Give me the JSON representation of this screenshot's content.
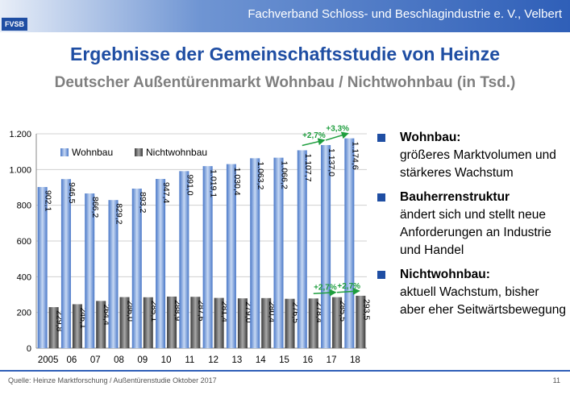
{
  "header": {
    "logo_text": "FVSB",
    "organization": "Fachverband Schloss- und Beschlagindustrie e. V., Velbert"
  },
  "title": "Ergebnisse der Gemeinschaftsstudie von Heinze",
  "subtitle": "Deutscher Außentürenmarkt Wohnbau / Nichtwohnbau (in Tsd.)",
  "chart_data": {
    "type": "bar",
    "categories": [
      "2005",
      "06",
      "07",
      "08",
      "09",
      "10",
      "11",
      "12",
      "13",
      "14",
      "15",
      "16",
      "17",
      "18"
    ],
    "series": [
      {
        "name": "Wohnbau",
        "values": [
          902.1,
          946.5,
          866.2,
          829.2,
          893.2,
          947.4,
          991.0,
          1019.1,
          1030.4,
          1063.2,
          1066.2,
          1107.7,
          1137.0,
          1174.6
        ],
        "labels": [
          "902,1",
          "946,5",
          "866,2",
          "829,2",
          "893,2",
          "947,4",
          "991,0",
          "1.019,1",
          "1.030,4",
          "1.063,2",
          "1.066,2",
          "1.107,7",
          "1.137,0",
          "1.174,6"
        ]
      },
      {
        "name": "Nichtwohnbau",
        "values": [
          229.8,
          246.1,
          264.4,
          286.0,
          285.1,
          288.9,
          287.6,
          281.4,
          279.0,
          280.4,
          276.5,
          278.4,
          285.5,
          293.5
        ],
        "labels": [
          "229,8",
          "246,1",
          "264,4",
          "286,0",
          "285,1",
          "288,9",
          "287,6",
          "281,4",
          "279,0",
          "280,4",
          "276,5",
          "278,4",
          "285,5",
          "293,5"
        ]
      }
    ],
    "ylim": [
      0,
      1200
    ],
    "yticks": [
      0,
      200,
      400,
      600,
      800,
      1000,
      1200
    ],
    "ytick_labels": [
      "0",
      "200",
      "400",
      "600",
      "800",
      "1.000",
      "1.200"
    ],
    "grid": true,
    "legend": "top-left",
    "annotations": [
      {
        "series": 0,
        "from": 11,
        "to": 12,
        "text": "+2,7%"
      },
      {
        "series": 0,
        "from": 12,
        "to": 13,
        "text": "+3,3%"
      },
      {
        "series": 1,
        "from": 11,
        "to": 12,
        "text": "+2,7%"
      },
      {
        "series": 1,
        "from": 12,
        "to": 13,
        "text": "+2,7%"
      }
    ],
    "colors": {
      "wohnbau": "#7fa6e0",
      "nichtwohnbau": "#555555",
      "annotation": "#1e9e3e"
    }
  },
  "bullets": [
    {
      "head": "Wohnbau:",
      "body": "größeres Marktvolumen und stärkeres Wachstum"
    },
    {
      "head": "Bauherrenstruktur",
      "body": "ändert sich und stellt neue Anforderungen an Industrie und Handel"
    },
    {
      "head": "Nichtwohnbau:",
      "body": "aktuell Wachstum, bisher aber eher Seitwärtsbewegung"
    }
  ],
  "footer": {
    "source": "Quelle:  Heinze Marktforschung / Außentürenstudie Oktober 2017",
    "page": "11"
  }
}
